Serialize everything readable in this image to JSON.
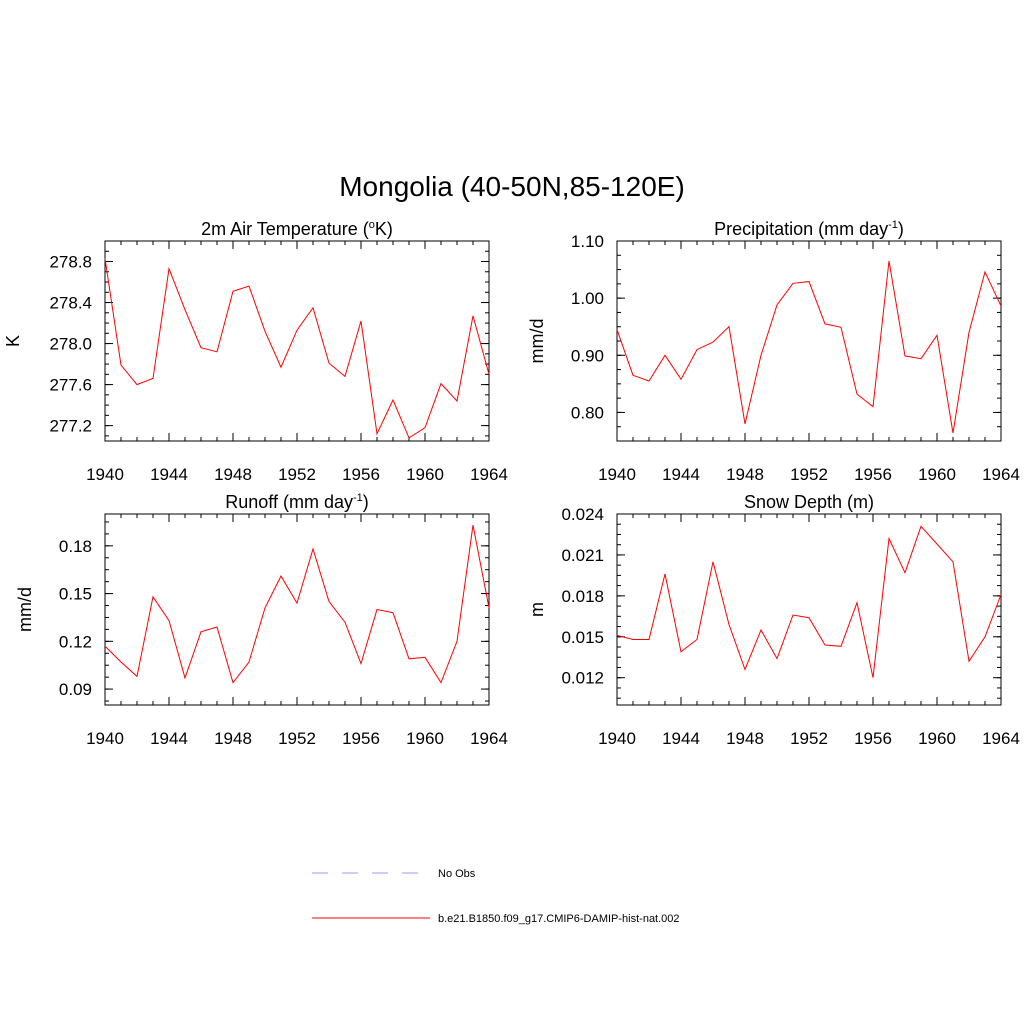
{
  "figure": {
    "title": "Mongolia (40-50N,85-120E)"
  },
  "legend": {
    "items": [
      {
        "label": "No Obs",
        "color": "#9999ff",
        "dash": true
      },
      {
        "label": "b.e21.B1850.f09_g17.CMIP6-DAMIP-hist-nat.002",
        "color": "#ff0000",
        "dash": false
      }
    ]
  },
  "chart_data": [
    {
      "type": "line",
      "title_main": "2m Air Temperature (",
      "title_sup": "o",
      "title_tail": "K)",
      "ylabel": "K",
      "xlim": [
        1940,
        1964
      ],
      "ylim": [
        277.05,
        279.0
      ],
      "xticks": [
        1940,
        1944,
        1948,
        1952,
        1956,
        1960,
        1964
      ],
      "yticks": [
        "277.2",
        "277.6",
        "278.0",
        "278.4",
        "278.8"
      ],
      "ytick_values": [
        277.2,
        277.6,
        278.0,
        278.4,
        278.8
      ],
      "yminor": 0.1,
      "series": [
        {
          "color": "#ff0000",
          "x": [
            1940,
            1941,
            1942,
            1943,
            1944,
            1945,
            1946,
            1947,
            1948,
            1949,
            1950,
            1951,
            1952,
            1953,
            1954,
            1955,
            1956,
            1957,
            1958,
            1959,
            1960,
            1961,
            1962,
            1963,
            1964
          ],
          "values": [
            278.83,
            277.79,
            277.6,
            277.66,
            278.73,
            278.33,
            277.96,
            277.92,
            278.51,
            278.56,
            278.12,
            277.77,
            278.13,
            278.35,
            277.81,
            277.68,
            278.22,
            277.12,
            277.45,
            277.08,
            277.18,
            277.61,
            277.44,
            278.27,
            277.7
          ]
        }
      ]
    },
    {
      "type": "line",
      "title_main": "Precipitation (mm day",
      "title_sup": "-1",
      "title_tail": ")",
      "ylabel": "mm/d",
      "xlim": [
        1940,
        1964
      ],
      "ylim": [
        0.75,
        1.1
      ],
      "xticks": [
        1940,
        1944,
        1948,
        1952,
        1956,
        1960,
        1964
      ],
      "yticks": [
        "0.80",
        "0.90",
        "1.00",
        "1.10"
      ],
      "ytick_values": [
        0.8,
        0.9,
        1.0,
        1.1
      ],
      "yminor": 0.025,
      "series": [
        {
          "color": "#ff0000",
          "x": [
            1940,
            1941,
            1942,
            1943,
            1944,
            1945,
            1946,
            1947,
            1948,
            1949,
            1950,
            1951,
            1952,
            1953,
            1954,
            1955,
            1956,
            1957,
            1958,
            1959,
            1960,
            1961,
            1962,
            1963,
            1964
          ],
          "values": [
            0.945,
            0.865,
            0.855,
            0.9,
            0.858,
            0.91,
            0.923,
            0.95,
            0.78,
            0.9,
            0.988,
            1.026,
            1.029,
            0.955,
            0.949,
            0.832,
            0.81,
            1.065,
            0.899,
            0.894,
            0.935,
            0.764,
            0.94,
            1.046,
            0.986
          ]
        }
      ]
    },
    {
      "type": "line",
      "title_main": "Runoff (mm day",
      "title_sup": "-1",
      "title_tail": ")",
      "ylabel": "mm/d",
      "xlim": [
        1940,
        1964
      ],
      "ylim": [
        0.08,
        0.2
      ],
      "xticks": [
        1940,
        1944,
        1948,
        1952,
        1956,
        1960,
        1964
      ],
      "yticks": [
        "0.09",
        "0.12",
        "0.15",
        "0.18"
      ],
      "ytick_values": [
        0.09,
        0.12,
        0.15,
        0.18
      ],
      "yminor": 0.0075,
      "series": [
        {
          "color": "#ff0000",
          "x": [
            1940,
            1941,
            1942,
            1943,
            1944,
            1945,
            1946,
            1947,
            1948,
            1949,
            1950,
            1951,
            1952,
            1953,
            1954,
            1955,
            1956,
            1957,
            1958,
            1959,
            1960,
            1961,
            1962,
            1963,
            1964
          ],
          "values": [
            0.117,
            0.107,
            0.098,
            0.148,
            0.133,
            0.097,
            0.126,
            0.129,
            0.094,
            0.107,
            0.141,
            0.161,
            0.144,
            0.178,
            0.145,
            0.132,
            0.106,
            0.14,
            0.138,
            0.109,
            0.11,
            0.094,
            0.12,
            0.193,
            0.141
          ]
        }
      ]
    },
    {
      "type": "line",
      "title_main": "Snow Depth (m)",
      "title_sup": "",
      "title_tail": "",
      "ylabel": "m",
      "xlim": [
        1940,
        1964
      ],
      "ylim": [
        0.01,
        0.024
      ],
      "xticks": [
        1940,
        1944,
        1948,
        1952,
        1956,
        1960,
        1964
      ],
      "yticks": [
        "0.012",
        "0.015",
        "0.018",
        "0.021",
        "0.024"
      ],
      "ytick_values": [
        0.012,
        0.015,
        0.018,
        0.021,
        0.024
      ],
      "yminor": 0.00075,
      "series": [
        {
          "color": "#ff0000",
          "x": [
            1940,
            1941,
            1942,
            1943,
            1944,
            1945,
            1946,
            1947,
            1948,
            1949,
            1950,
            1951,
            1952,
            1953,
            1954,
            1955,
            1956,
            1957,
            1958,
            1959,
            1960,
            1961,
            1962,
            1963,
            1964
          ],
          "values": [
            0.0151,
            0.0148,
            0.0148,
            0.0196,
            0.0139,
            0.0148,
            0.0205,
            0.0159,
            0.0126,
            0.0155,
            0.0134,
            0.0166,
            0.0164,
            0.0144,
            0.0143,
            0.0175,
            0.012,
            0.0222,
            0.0197,
            0.0231,
            0.0218,
            0.0205,
            0.0132,
            0.015,
            0.0181
          ]
        }
      ]
    }
  ]
}
